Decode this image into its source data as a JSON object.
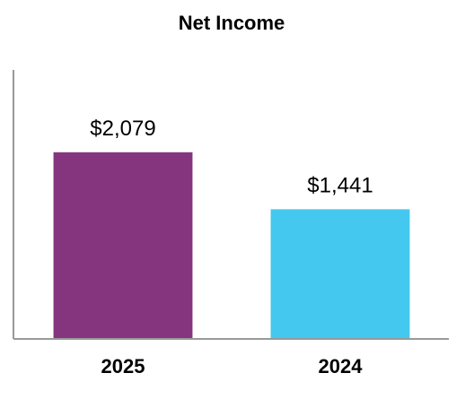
{
  "chart_data": {
    "type": "bar",
    "title": "Net Income",
    "categories": [
      "2025",
      "2024"
    ],
    "values": [
      2079,
      1441
    ],
    "value_labels": [
      "$2,079",
      "$1,441"
    ],
    "colors": [
      "#84357e",
      "#44c8f0"
    ],
    "ylim": [
      0,
      3000
    ]
  }
}
